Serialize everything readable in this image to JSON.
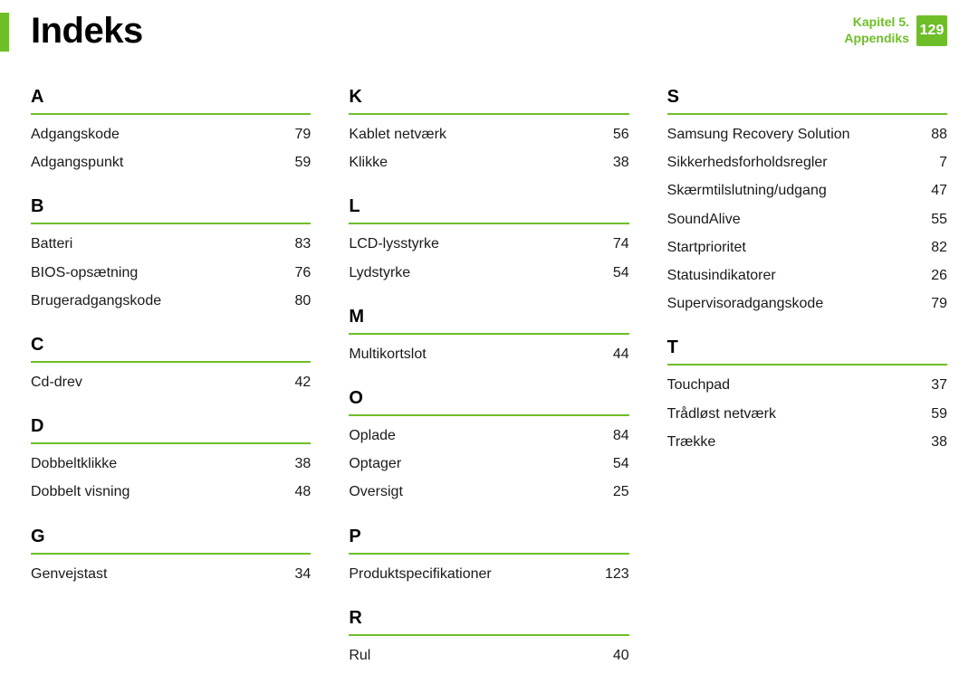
{
  "header": {
    "title": "Indeks",
    "chapter_line1": "Kapitel 5.",
    "chapter_line2": "Appendiks",
    "page_number": "129"
  },
  "style": {
    "accent_color": "#6ebe28",
    "background_color": "#ffffff",
    "text_color": "#1a1a1a",
    "title_fontsize": 40,
    "letter_fontsize": 20,
    "entry_fontsize": 16
  },
  "columns": [
    {
      "sections": [
        {
          "letter": "A",
          "entries": [
            {
              "term": "Adgangskode",
              "page": "79"
            },
            {
              "term": "Adgangspunkt",
              "page": "59"
            }
          ]
        },
        {
          "letter": "B",
          "entries": [
            {
              "term": "Batteri",
              "page": "83"
            },
            {
              "term": "BIOS-opsætning",
              "page": "76"
            },
            {
              "term": "Brugeradgangskode",
              "page": "80"
            }
          ]
        },
        {
          "letter": "C",
          "entries": [
            {
              "term": "Cd-drev",
              "page": "42"
            }
          ]
        },
        {
          "letter": "D",
          "entries": [
            {
              "term": "Dobbeltklikke",
              "page": "38"
            },
            {
              "term": "Dobbelt visning",
              "page": "48"
            }
          ]
        },
        {
          "letter": "G",
          "entries": [
            {
              "term": "Genvejstast",
              "page": "34"
            }
          ]
        }
      ]
    },
    {
      "sections": [
        {
          "letter": "K",
          "entries": [
            {
              "term": "Kablet netværk",
              "page": "56"
            },
            {
              "term": "Klikke",
              "page": "38"
            }
          ]
        },
        {
          "letter": "L",
          "entries": [
            {
              "term": "LCD-lysstyrke",
              "page": "74"
            },
            {
              "term": "Lydstyrke",
              "page": "54"
            }
          ]
        },
        {
          "letter": "M",
          "entries": [
            {
              "term": "Multikortslot",
              "page": "44"
            }
          ]
        },
        {
          "letter": "O",
          "entries": [
            {
              "term": "Oplade",
              "page": "84"
            },
            {
              "term": "Optager",
              "page": "54"
            },
            {
              "term": "Oversigt",
              "page": "25"
            }
          ]
        },
        {
          "letter": "P",
          "entries": [
            {
              "term": "Produktspecifikationer",
              "page": "123"
            }
          ]
        },
        {
          "letter": "R",
          "entries": [
            {
              "term": "Rul",
              "page": "40"
            }
          ]
        }
      ]
    },
    {
      "sections": [
        {
          "letter": "S",
          "entries": [
            {
              "term": "Samsung Recovery Solution",
              "page": "88"
            },
            {
              "term": "Sikkerhedsforholdsregler",
              "page": "7"
            },
            {
              "term": "Skærmtilslutning/udgang",
              "page": "47"
            },
            {
              "term": "SoundAlive",
              "page": "55"
            },
            {
              "term": "Startprioritet",
              "page": "82"
            },
            {
              "term": "Statusindikatorer",
              "page": "26"
            },
            {
              "term": "Supervisoradgangskode",
              "page": "79"
            }
          ]
        },
        {
          "letter": "T",
          "entries": [
            {
              "term": "Touchpad",
              "page": "37"
            },
            {
              "term": "Trådløst netværk",
              "page": "59"
            },
            {
              "term": "Trække",
              "page": "38"
            }
          ]
        }
      ]
    }
  ]
}
